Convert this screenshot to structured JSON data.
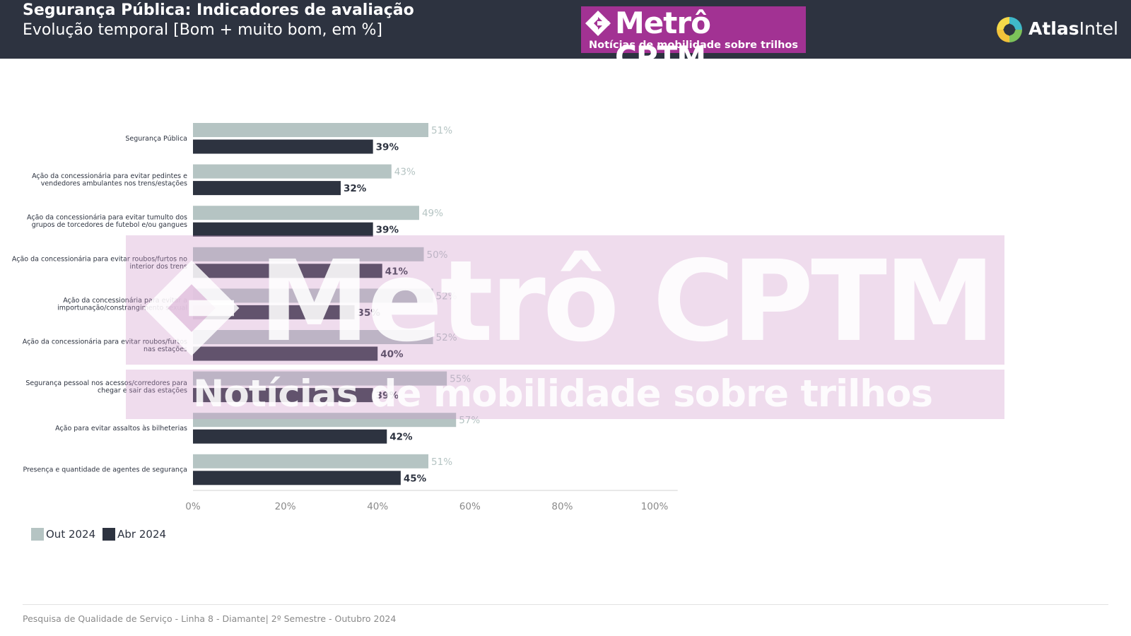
{
  "header": {
    "title": "Segurança Pública: Indicadores de avaliação",
    "subtitle": "Evolução temporal [Bom + muito bom, em %]"
  },
  "logo": {
    "main": "Metrô CPTM",
    "sub": "Notícias de mobilidade sobre trilhos",
    "color": "#a23293"
  },
  "atlas": {
    "part1": "Atlas",
    "part2": "Intel"
  },
  "watermark": {
    "main": "Metrô CPTM",
    "sub": "Notícias de mobilidade sobre trilhos"
  },
  "chart_data": {
    "type": "bar",
    "orientation": "horizontal",
    "categories": [
      [
        "Segurança Pública"
      ],
      [
        "Ação da concessionária para evitar pedintes e",
        "vendedores ambulantes nos trens/estações"
      ],
      [
        "Ação da concessionária para evitar tumulto dos",
        "grupos de torcedores de futebol e/ou gangues"
      ],
      [
        "Ação da concessionária para evitar roubos/furtos no",
        "interior dos trens"
      ],
      [
        "Ação da concessionária para evitar a",
        "importunação/constrangimento sexual"
      ],
      [
        "Ação da concessionária para evitar roubos/furtos",
        "nas estações"
      ],
      [
        "Segurança pessoal nos acessos/corredores para",
        "chegar e sair das estações"
      ],
      [
        "Ação para evitar assaltos às bilheterias"
      ],
      [
        "Presença e quantidade de agentes de segurança"
      ]
    ],
    "series": [
      {
        "name": "Out 2024",
        "color": "#b5c4c3",
        "labelColor": "#b5c4c3",
        "values": [
          51,
          43,
          49,
          50,
          52,
          52,
          55,
          57,
          51
        ]
      },
      {
        "name": "Abr 2024",
        "color": "#2d3340",
        "labelColor": "#2d3340",
        "values": [
          39,
          32,
          39,
          41,
          35,
          40,
          39,
          42,
          45
        ]
      }
    ],
    "value_suffix": "%",
    "xlim": [
      0,
      105
    ],
    "xticks": [
      0,
      20,
      40,
      60,
      80,
      100
    ],
    "xtick_labels": [
      "0%",
      "20%",
      "40%",
      "60%",
      "80%",
      "100%"
    ],
    "legend_position": "bottom-left",
    "grid": false
  },
  "footer": {
    "text": "Pesquisa de Qualidade de Serviço - Linha 8 - Diamante| 2º Semestre - Outubro 2024"
  }
}
